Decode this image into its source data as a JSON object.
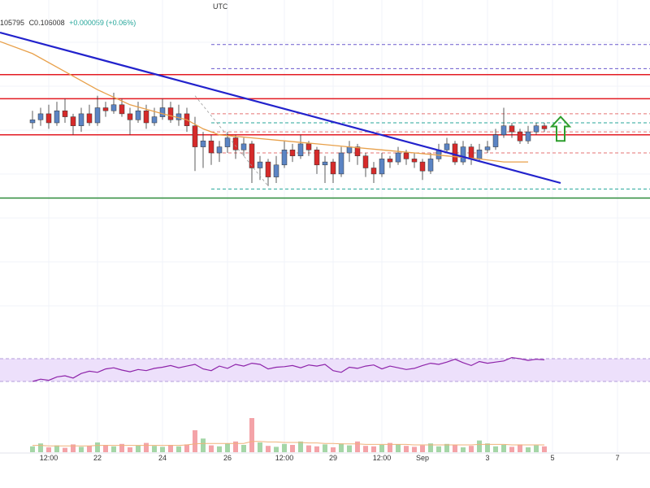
{
  "header": {
    "timezone": "UTC",
    "ohlc_tail": "105795",
    "close": "C0.106008",
    "change": "+0.000059 (+0.06%)"
  },
  "chart_data": [
    {
      "type": "candlestick",
      "title": "",
      "x_tick_labels": [
        "12:00",
        "22",
        "24",
        "26",
        "12:00",
        "29",
        "12:00",
        "Sep",
        "3",
        "5",
        "7"
      ],
      "x_tick_positions": [
        2,
        8,
        16,
        24,
        31,
        37,
        43,
        48,
        56,
        64,
        72
      ],
      "x_range": [
        -4,
        76
      ],
      "y_range": [
        0,
        100
      ],
      "candles": [
        [
          0,
          70,
          71,
          74,
          68
        ],
        [
          1,
          71,
          73,
          75,
          69
        ],
        [
          2,
          73,
          70,
          76,
          68
        ],
        [
          3,
          70,
          74,
          77,
          69
        ],
        [
          4,
          74,
          72,
          78,
          70
        ],
        [
          5,
          72,
          69,
          73,
          66
        ],
        [
          6,
          69,
          73,
          75,
          67
        ],
        [
          7,
          73,
          70,
          76,
          69
        ],
        [
          8,
          70,
          75,
          79,
          69
        ],
        [
          9,
          75,
          74,
          77,
          72
        ],
        [
          10,
          74,
          76,
          80,
          73
        ],
        [
          11,
          76,
          73,
          78,
          72
        ],
        [
          12,
          73,
          71,
          75,
          66
        ],
        [
          13,
          71,
          74,
          77,
          70
        ],
        [
          14,
          74,
          70,
          76,
          68
        ],
        [
          15,
          70,
          72,
          75,
          69
        ],
        [
          16,
          72,
          75,
          78,
          71
        ],
        [
          17,
          75,
          71,
          77,
          70
        ],
        [
          18,
          71,
          73,
          76,
          69
        ],
        [
          19,
          73,
          69,
          75,
          67
        ],
        [
          20,
          69,
          62,
          72,
          54
        ],
        [
          21,
          62,
          64,
          67,
          55
        ],
        [
          22,
          64,
          60,
          66,
          56
        ],
        [
          23,
          60,
          62,
          64,
          57
        ],
        [
          24,
          62,
          65,
          67,
          60
        ],
        [
          25,
          65,
          61,
          66,
          58
        ],
        [
          26,
          61,
          63,
          65,
          59
        ],
        [
          27,
          63,
          55,
          64,
          50
        ],
        [
          28,
          55,
          57,
          59,
          51
        ],
        [
          29,
          57,
          52,
          58,
          49
        ],
        [
          30,
          52,
          56,
          59,
          50
        ],
        [
          31,
          56,
          61,
          64,
          55
        ],
        [
          32,
          61,
          59,
          63,
          57
        ],
        [
          33,
          59,
          63,
          66,
          58
        ],
        [
          34,
          63,
          61,
          64,
          59
        ],
        [
          35,
          61,
          56,
          62,
          53
        ],
        [
          36,
          56,
          57,
          59,
          50
        ],
        [
          37,
          57,
          53,
          58,
          50
        ],
        [
          38,
          53,
          60,
          62,
          52
        ],
        [
          39,
          60,
          62,
          64,
          57
        ],
        [
          40,
          62,
          59,
          63,
          56
        ],
        [
          41,
          59,
          55,
          60,
          52
        ],
        [
          42,
          55,
          53,
          57,
          50
        ],
        [
          43,
          53,
          58,
          60,
          52
        ],
        [
          44,
          58,
          57,
          59,
          55
        ],
        [
          45,
          57,
          60,
          62,
          56
        ],
        [
          46,
          60,
          58,
          61,
          56
        ],
        [
          47,
          58,
          57,
          60,
          55
        ],
        [
          48,
          57,
          54,
          58,
          51
        ],
        [
          49,
          54,
          58,
          60,
          53
        ],
        [
          50,
          58,
          61,
          63,
          57
        ],
        [
          51,
          61,
          63,
          65,
          60
        ],
        [
          52,
          63,
          57,
          64,
          56
        ],
        [
          53,
          57,
          62,
          64,
          56
        ],
        [
          54,
          62,
          58,
          63,
          56
        ],
        [
          55,
          58,
          61,
          63,
          57
        ],
        [
          56,
          61,
          62,
          64,
          60
        ],
        [
          57,
          62,
          66,
          68,
          61
        ],
        [
          58,
          66,
          69,
          75,
          65
        ],
        [
          59,
          69,
          67,
          70,
          65
        ],
        [
          60,
          67,
          64,
          68,
          63
        ],
        [
          61,
          64,
          67,
          69,
          63
        ],
        [
          62,
          67,
          69,
          70,
          66
        ],
        [
          63,
          69,
          68,
          70,
          67
        ]
      ],
      "moving_average": [
        [
          -4,
          97
        ],
        [
          0,
          93
        ],
        [
          4,
          87
        ],
        [
          8,
          81
        ],
        [
          12,
          76
        ],
        [
          16,
          73
        ],
        [
          19,
          71
        ],
        [
          21,
          68
        ],
        [
          23,
          66
        ],
        [
          27,
          65
        ],
        [
          31,
          64
        ],
        [
          35,
          63
        ],
        [
          39,
          62
        ],
        [
          43,
          61
        ],
        [
          47,
          60
        ],
        [
          51,
          59
        ],
        [
          55,
          58
        ],
        [
          58,
          57
        ],
        [
          61,
          57
        ]
      ],
      "trendline": [
        [
          -4,
          100
        ],
        [
          65,
          50
        ]
      ],
      "horizontal_levels_red": [
        86,
        78,
        66
      ],
      "horizontal_level_green": 45,
      "dashed_levels": [
        {
          "y": 96,
          "color": "#6a5acd",
          "x_from": 22
        },
        {
          "y": 88,
          "color": "#6a5acd",
          "x_from": 22
        },
        {
          "y": 73,
          "color": "#e57373",
          "x_from": 22
        },
        {
          "y": 70,
          "color": "#26a69a",
          "x_from": 22
        },
        {
          "y": 67,
          "color": "#e57373",
          "x_from": 22
        },
        {
          "y": 60,
          "color": "#e57373",
          "x_from": 22
        },
        {
          "y": 48,
          "color": "#26a69a",
          "x_from": 22
        }
      ],
      "fib_diagonal": [
        [
          20,
          79
        ],
        [
          29,
          49
        ]
      ],
      "arrow": {
        "direction": "up",
        "color": "#2e9e2e",
        "at_x": 65,
        "y_from": 64,
        "y_to": 72
      }
    },
    {
      "type": "line",
      "title": "",
      "y_range": [
        0,
        100
      ],
      "band": [
        30,
        70
      ],
      "series": [
        {
          "values": [
            30,
            34,
            32,
            38,
            40,
            36,
            44,
            48,
            46,
            52,
            54,
            50,
            47,
            51,
            49,
            53,
            55,
            58,
            54,
            57,
            60,
            52,
            49,
            57,
            53,
            60,
            57,
            62,
            60,
            52,
            55,
            56,
            58,
            54,
            59,
            57,
            60,
            49,
            46,
            55,
            53,
            57,
            59,
            52,
            57,
            54,
            51,
            53,
            58,
            62,
            60,
            64,
            69,
            63,
            58,
            65,
            62,
            64,
            66,
            72,
            70,
            67,
            69,
            68
          ]
        }
      ]
    },
    {
      "type": "bar",
      "title": "",
      "y_range": [
        0,
        100
      ],
      "values": [
        12,
        18,
        10,
        14,
        9,
        16,
        11,
        13,
        20,
        15,
        12,
        17,
        10,
        14,
        19,
        13,
        11,
        15,
        12,
        16,
        45,
        28,
        14,
        12,
        18,
        22,
        15,
        70,
        20,
        13,
        11,
        17,
        15,
        22,
        14,
        12,
        16,
        10,
        18,
        14,
        22,
        13,
        12,
        15,
        19,
        16,
        13,
        11,
        14,
        18,
        12,
        17,
        15,
        10,
        13,
        24,
        18,
        12,
        15,
        11,
        16,
        10,
        14,
        12
      ],
      "ma_values": [
        14,
        14,
        13,
        13,
        13,
        13,
        13,
        13,
        14,
        14,
        14,
        14,
        14,
        14,
        14,
        14,
        14,
        14,
        14,
        15,
        17,
        18,
        18,
        18,
        18,
        18,
        18,
        22,
        22,
        21,
        21,
        20,
        20,
        20,
        19,
        19,
        18,
        18,
        17,
        17,
        17,
        16,
        16,
        16,
        16,
        16,
        16,
        15,
        15,
        15,
        15,
        15,
        15,
        15,
        15,
        16,
        16,
        16,
        16,
        15,
        15,
        15,
        15,
        15
      ]
    }
  ]
}
